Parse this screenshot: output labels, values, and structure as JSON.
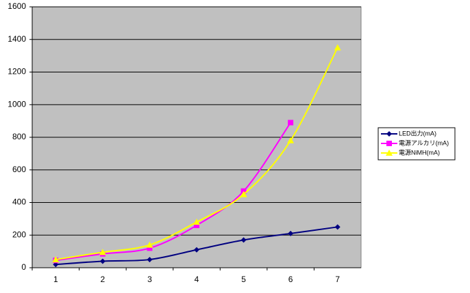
{
  "chart_data": {
    "type": "line",
    "categories": [
      1,
      2,
      3,
      4,
      5,
      6,
      7
    ],
    "series": [
      {
        "name": "LED出力(mA)",
        "color": "#000080",
        "marker": "diamond",
        "values": [
          20,
          40,
          50,
          110,
          170,
          210,
          250
        ]
      },
      {
        "name": "電源アルカリ(mA)",
        "color": "#ff00ff",
        "marker": "square",
        "values": [
          45,
          85,
          120,
          260,
          470,
          890,
          null
        ]
      },
      {
        "name": "電源NiMH(mA)",
        "color": "#ffff00",
        "marker": "triangle",
        "values": [
          50,
          95,
          140,
          280,
          450,
          780,
          1350
        ]
      }
    ],
    "ylim": [
      0,
      1600
    ],
    "yticks": [
      0,
      200,
      400,
      600,
      800,
      1000,
      1200,
      1400,
      1600
    ],
    "grid": true,
    "smooth": true,
    "legend": "right"
  }
}
